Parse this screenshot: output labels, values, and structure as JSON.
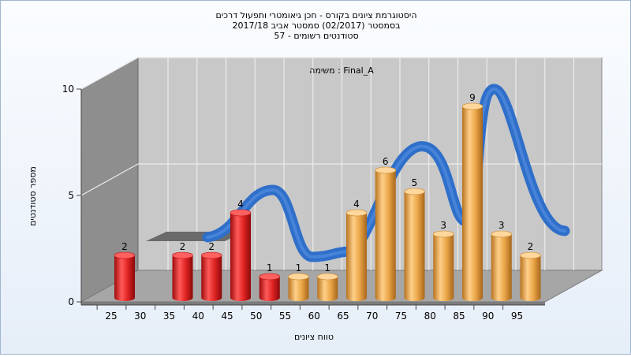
{
  "chart_data": {
    "type": "bar",
    "title": [
      "היסטוגרמת ציונים בקורס - חכן גיאומטרי ותפעול דרכים",
      "בסמסטר  (02/2017)  סמסטר אביב 2017/18",
      "סטודנטים רשומים - 57"
    ],
    "task_label": "משימה : Final_A",
    "xlabel": "טווח ציונים",
    "ylabel": "מספר סטודנטים",
    "ylim": [
      0,
      10
    ],
    "y_ticks": [
      "0",
      "5",
      "10"
    ],
    "x_ticks": [
      "25",
      "30",
      "35",
      "40",
      "45",
      "50",
      "55",
      "60",
      "65",
      "70",
      "75",
      "80",
      "85",
      "90",
      "95"
    ],
    "categories": [
      "25",
      "35",
      "40",
      "45",
      "50",
      "55",
      "60",
      "65",
      "70",
      "75",
      "80",
      "85",
      "90",
      "95"
    ],
    "values": [
      2,
      2,
      2,
      4,
      1,
      1,
      1,
      4,
      6,
      5,
      3,
      9,
      3,
      2
    ],
    "bar_colors": [
      "#d42020",
      "#d42020",
      "#d42020",
      "#d42020",
      "#d42020",
      "#e6a03c",
      "#e6a03c",
      "#e6a03c",
      "#e6a03c",
      "#e6a03c",
      "#e6a03c",
      "#e6a03c",
      "#e6a03c",
      "#e6a03c"
    ],
    "curve_color": "#2f6fca",
    "grid": true,
    "legend": "none"
  }
}
